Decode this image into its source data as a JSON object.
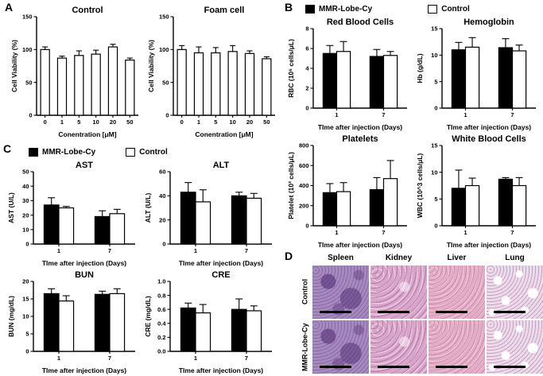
{
  "figure": {
    "background": "#ffffff"
  },
  "panels": {
    "a": {
      "label": "A"
    },
    "b": {
      "label": "B",
      "legend": [
        {
          "label": "MMR-Lobe-Cy",
          "fill": "#000000"
        },
        {
          "label": "Control",
          "fill": "#ffffff"
        }
      ]
    },
    "c": {
      "label": "C",
      "legend": [
        {
          "label": "MMR-Lobe-Cy",
          "fill": "#000000"
        },
        {
          "label": "Control",
          "fill": "#ffffff"
        }
      ]
    },
    "d": {
      "label": "D",
      "columns": [
        "Spleen",
        "Kidney",
        "Liver",
        "Lung"
      ],
      "rows": [
        "Control",
        "MMR-Lobe-Cy"
      ],
      "tile_colors": {
        "Spleen": "#a68abf",
        "Kidney": "#d8a6c9",
        "Liver": "#e2adc5",
        "Lung": "#ecdcea"
      }
    }
  },
  "chart_data": [
    {
      "id": "a-control",
      "type": "bar",
      "title": "Control",
      "xlabel": "Conentration [μM]",
      "ylabel": "Cell Viability (%)",
      "ylim": [
        0,
        150
      ],
      "yticks": [
        "0",
        "50",
        "100",
        "150"
      ],
      "categories": [
        "0",
        "1",
        "5",
        "10",
        "20",
        "50"
      ],
      "series": [
        {
          "name": "Cell viability",
          "fill": "#ffffff",
          "values": [
            100,
            87,
            91,
            93,
            104,
            84
          ],
          "errors": [
            4,
            3,
            7,
            6,
            4,
            3
          ]
        }
      ]
    },
    {
      "id": "a-foam",
      "type": "bar",
      "title": "Foam cell",
      "xlabel": "Conentration [μM]",
      "ylabel": "Cell Viability (%)",
      "ylim": [
        0,
        150
      ],
      "yticks": [
        "0",
        "50",
        "100",
        "150"
      ],
      "categories": [
        "0",
        "1",
        "5",
        "10",
        "20",
        "50"
      ],
      "series": [
        {
          "name": "Cell viability",
          "fill": "#ffffff",
          "values": [
            100,
            95,
            95,
            97,
            94,
            86
          ],
          "errors": [
            6,
            9,
            8,
            9,
            4,
            3
          ]
        }
      ]
    },
    {
      "id": "b-rbc",
      "type": "bar",
      "title": "Red Blood Cells",
      "xlabel": "TIme after injection (Days)",
      "ylabel": "RBC (10⁶ cells/μL)",
      "ylim": [
        0,
        8
      ],
      "yticks": [
        "0",
        "2",
        "4",
        "6",
        "8"
      ],
      "categories": [
        "1",
        "7"
      ],
      "series": [
        {
          "name": "MMR-Lobe-Cy",
          "fill": "#000000",
          "values": [
            5.5,
            5.2
          ],
          "errors": [
            0.8,
            0.7
          ]
        },
        {
          "name": "Control",
          "fill": "#ffffff",
          "values": [
            5.7,
            5.3
          ],
          "errors": [
            1.0,
            0.4
          ]
        }
      ]
    },
    {
      "id": "b-hb",
      "type": "bar",
      "title": "Hemoglobin",
      "xlabel": "TIme after injection (Days)",
      "ylabel": "Hb (g/dL)",
      "ylim": [
        0,
        15
      ],
      "yticks": [
        "0",
        "5",
        "10",
        "15"
      ],
      "categories": [
        "1",
        "7"
      ],
      "series": [
        {
          "name": "MMR-Lobe-Cy",
          "fill": "#000000",
          "values": [
            11.0,
            11.4
          ],
          "errors": [
            1.4,
            1.7
          ]
        },
        {
          "name": "Control",
          "fill": "#ffffff",
          "values": [
            11.5,
            10.8
          ],
          "errors": [
            1.8,
            1.1
          ]
        }
      ]
    },
    {
      "id": "b-plt",
      "type": "bar",
      "title": "Platelets",
      "xlabel": "TIme after injection (Days)",
      "ylabel": "Platelet (10³ cells/μL)",
      "ylim": [
        0,
        800
      ],
      "yticks": [
        "0",
        "200",
        "400",
        "600",
        "800"
      ],
      "categories": [
        "1",
        "7"
      ],
      "series": [
        {
          "name": "MMR-Lobe-Cy",
          "fill": "#000000",
          "values": [
            330,
            360
          ],
          "errors": [
            90,
            120
          ]
        },
        {
          "name": "Control",
          "fill": "#ffffff",
          "values": [
            340,
            470
          ],
          "errors": [
            90,
            180
          ]
        }
      ]
    },
    {
      "id": "b-wbc",
      "type": "bar",
      "title": "White Blood Cells",
      "xlabel": "TIme after injection (Days)",
      "ylabel": "WBC (10^3 cells/μL)",
      "ylim": [
        0,
        15
      ],
      "yticks": [
        "0",
        "5",
        "10",
        "15"
      ],
      "categories": [
        "1",
        "7"
      ],
      "series": [
        {
          "name": "MMR-Lobe-Cy",
          "fill": "#000000",
          "values": [
            7.0,
            8.7
          ],
          "errors": [
            3.4,
            0.3
          ]
        },
        {
          "name": "Control",
          "fill": "#ffffff",
          "values": [
            7.5,
            7.5
          ],
          "errors": [
            1.4,
            1.5
          ]
        }
      ]
    },
    {
      "id": "c-ast",
      "type": "bar",
      "title": "AST",
      "xlabel": "TIme after injection (Days)",
      "ylabel": "AST (U/L)",
      "ylim": [
        0,
        50
      ],
      "yticks": [
        "0",
        "10",
        "20",
        "30",
        "40",
        "50"
      ],
      "categories": [
        "1",
        "7"
      ],
      "series": [
        {
          "name": "MMR-Lobe-Cy",
          "fill": "#000000",
          "values": [
            27,
            19
          ],
          "errors": [
            5,
            4
          ]
        },
        {
          "name": "Control",
          "fill": "#ffffff",
          "values": [
            25,
            21
          ],
          "errors": [
            1,
            3
          ]
        }
      ]
    },
    {
      "id": "c-alt",
      "type": "bar",
      "title": "ALT",
      "xlabel": "TIme after injection (Days)",
      "ylabel": "ALT (U/L)",
      "ylim": [
        0,
        60
      ],
      "yticks": [
        "0",
        "20",
        "40",
        "60"
      ],
      "categories": [
        "1",
        "7"
      ],
      "series": [
        {
          "name": "MMR-Lobe-Cy",
          "fill": "#000000",
          "values": [
            43,
            40
          ],
          "errors": [
            8,
            3
          ]
        },
        {
          "name": "Control",
          "fill": "#ffffff",
          "values": [
            35,
            38
          ],
          "errors": [
            10,
            4
          ]
        }
      ]
    },
    {
      "id": "c-bun",
      "type": "bar",
      "title": "BUN",
      "xlabel": "TIme after injection (Days)",
      "ylabel": "BUN (mg/dL)",
      "ylim": [
        0,
        20
      ],
      "yticks": [
        "0",
        "5",
        "10",
        "15",
        "20"
      ],
      "categories": [
        "1",
        "7"
      ],
      "series": [
        {
          "name": "MMR-Lobe-Cy",
          "fill": "#000000",
          "values": [
            16.5,
            16.3
          ],
          "errors": [
            1.4,
            0.9
          ]
        },
        {
          "name": "Control",
          "fill": "#ffffff",
          "values": [
            14.4,
            16.5
          ],
          "errors": [
            1.5,
            1.4
          ]
        }
      ]
    },
    {
      "id": "c-cre",
      "type": "bar",
      "title": "CRE",
      "xlabel": "TIme after injection (Days)",
      "ylabel": "CRE (mg/dL)",
      "ylim": [
        0,
        1.0
      ],
      "yticks": [
        "0.0",
        "0.2",
        "0.4",
        "0.6",
        "0.8",
        "1.0"
      ],
      "categories": [
        "1",
        "7"
      ],
      "series": [
        {
          "name": "MMR-Lobe-Cy",
          "fill": "#000000",
          "values": [
            0.62,
            0.6
          ],
          "errors": [
            0.07,
            0.15
          ]
        },
        {
          "name": "Control",
          "fill": "#ffffff",
          "values": [
            0.55,
            0.58
          ],
          "errors": [
            0.12,
            0.07
          ]
        }
      ]
    }
  ]
}
